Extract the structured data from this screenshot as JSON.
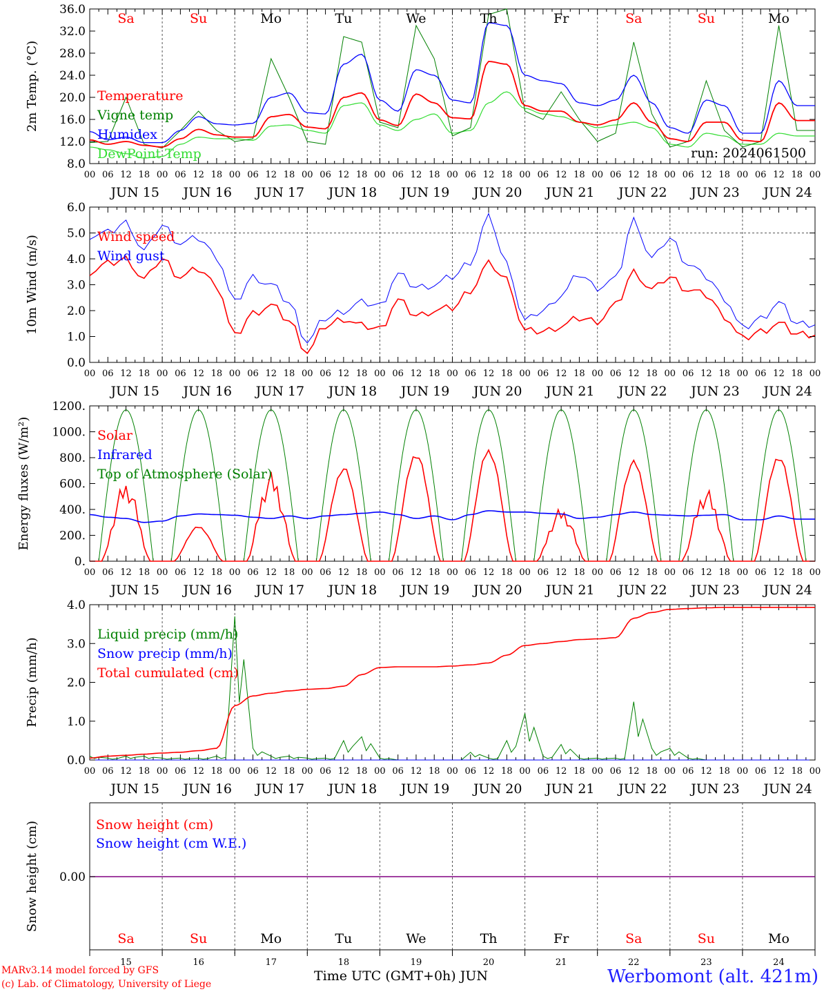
{
  "colors": {
    "red": "#ff0000",
    "green": "#008000",
    "blue": "#0000ff",
    "lightgreen": "#33dd33",
    "purple": "#800080",
    "grid": "#555555"
  },
  "days": {
    "weekday_top": [
      "Sa",
      "Su",
      "Mo",
      "Tu",
      "We",
      "Th",
      "Fr",
      "Sa",
      "Su",
      "Mo"
    ],
    "weekend_flags": [
      true,
      true,
      false,
      false,
      false,
      false,
      false,
      true,
      true,
      false
    ],
    "date_labels": [
      "JUN 15",
      "JUN 16",
      "JUN 17",
      "JUN 18",
      "JUN 19",
      "JUN 20",
      "JUN 21",
      "JUN 22",
      "JUN 23",
      "JUN 24"
    ],
    "day_numbers": [
      "15",
      "16",
      "17",
      "18",
      "19",
      "20",
      "21",
      "22",
      "23",
      "24"
    ],
    "hour_ticks": [
      "00",
      "06",
      "12",
      "18"
    ],
    "hour_end": "00"
  },
  "footer": {
    "credit_line1": "MARv3.14 model forced by GFS",
    "credit_line2": "(c) Lab. of Climatology, University of Liege",
    "time_label": "Time UTC (GMT+0h) JUN",
    "station": "Werbomont (alt. 421m)"
  },
  "chart_data": [
    {
      "type": "line",
      "ylabel": "2m Temp. (°C)",
      "ylim": [
        8,
        36
      ],
      "yticks": [
        "8.0",
        "12.0",
        "16.0",
        "20.0",
        "24.0",
        "28.0",
        "32.0",
        "36.0"
      ],
      "run_label": "run: 2024061500",
      "legend": [
        "Temperature",
        "Vigne temp",
        "Humidex",
        "DewPoint Temp"
      ],
      "x_hours": [
        0,
        6,
        12,
        18,
        24,
        30,
        36,
        42,
        48,
        54,
        60,
        66,
        72,
        78,
        84,
        90,
        96,
        102,
        108,
        114,
        120,
        126,
        132,
        138,
        144,
        150,
        156,
        162,
        168,
        174,
        180,
        186,
        192,
        198,
        204,
        210,
        216,
        222,
        228,
        234
      ],
      "series": [
        {
          "name": "Temperature",
          "values": [
            12.3,
            11.5,
            12.0,
            11.3,
            11.0,
            12.5,
            14.2,
            13.2,
            12.8,
            12.8,
            16.5,
            16.9,
            14.6,
            14.3,
            20.0,
            20.8,
            15.9,
            14.9,
            20.6,
            19.0,
            16.3,
            16.1,
            26.5,
            26.0,
            18.5,
            17.5,
            17.5,
            15.5,
            15.0,
            15.9,
            19.0,
            15.5,
            12.5,
            12.0,
            15.5,
            15.5,
            12.2,
            12.0,
            19.0,
            15.8
          ]
        },
        {
          "name": "Vigne temp",
          "values": [
            11.8,
            12.0,
            20.0,
            11.5,
            10.8,
            14.0,
            17.5,
            14.0,
            12.0,
            12.5,
            27.0,
            20.0,
            12.0,
            11.5,
            31.0,
            30.0,
            15.5,
            14.5,
            33.0,
            27.0,
            13.0,
            14.5,
            35.0,
            36.0,
            17.5,
            16.0,
            21.0,
            16.0,
            12.0,
            13.5,
            30.0,
            17.0,
            11.0,
            12.0,
            23.0,
            14.0,
            11.0,
            12.0,
            33.0,
            14.0
          ]
        },
        {
          "name": "Humidex",
          "values": [
            13.8,
            12.3,
            12.8,
            11.8,
            11.8,
            14.0,
            16.5,
            15.2,
            15.0,
            15.3,
            20.0,
            20.8,
            17.2,
            17.0,
            26.0,
            27.8,
            19.5,
            17.5,
            25.0,
            24.0,
            19.5,
            19.0,
            33.5,
            33.0,
            24.0,
            23.0,
            22.5,
            19.0,
            18.5,
            19.5,
            24.0,
            19.0,
            14.5,
            13.5,
            19.5,
            18.5,
            13.5,
            13.5,
            23.0,
            18.5
          ]
        },
        {
          "name": "DewPoint Temp",
          "values": [
            11.0,
            10.5,
            9.8,
            9.0,
            9.3,
            11.5,
            12.8,
            12.5,
            12.5,
            12.2,
            14.8,
            15.0,
            14.0,
            13.5,
            18.5,
            19.0,
            15.0,
            14.0,
            16.0,
            17.0,
            13.5,
            14.0,
            19.0,
            21.0,
            18.0,
            17.0,
            16.5,
            15.5,
            14.5,
            15.0,
            15.5,
            14.5,
            11.5,
            11.0,
            13.5,
            13.0,
            11.5,
            11.5,
            13.5,
            13.0
          ]
        }
      ]
    },
    {
      "type": "line",
      "ylabel": "10m Wind (m/s)",
      "ylim": [
        0,
        6
      ],
      "yticks": [
        "0.0",
        "1.0",
        "2.0",
        "3.0",
        "4.0",
        "5.0",
        "6.0"
      ],
      "reference_line": 5.0,
      "legend": [
        "Wind speed",
        "Wind gust"
      ],
      "x_hours": [
        0,
        6,
        12,
        18,
        24,
        30,
        36,
        42,
        48,
        54,
        60,
        66,
        72,
        78,
        84,
        90,
        96,
        102,
        108,
        114,
        120,
        126,
        132,
        138,
        144,
        150,
        156,
        162,
        168,
        174,
        180,
        186,
        192,
        198,
        204,
        210,
        216,
        222,
        228,
        234
      ],
      "series": [
        {
          "name": "Wind speed",
          "values": [
            3.5,
            3.8,
            4.0,
            3.2,
            4.0,
            3.3,
            3.6,
            3.0,
            1.0,
            1.9,
            2.2,
            1.6,
            0.4,
            1.4,
            1.7,
            1.4,
            1.3,
            2.4,
            1.8,
            2.0,
            2.1,
            2.8,
            3.8,
            3.2,
            1.2,
            1.2,
            1.4,
            1.7,
            1.6,
            2.2,
            3.5,
            2.8,
            3.3,
            2.8,
            2.6,
            1.8,
            0.9,
            1.2,
            1.5,
            1.1
          ]
        },
        {
          "name": "Wind gust",
          "values": [
            4.9,
            5.0,
            5.4,
            4.3,
            5.3,
            4.6,
            4.8,
            4.1,
            2.3,
            3.3,
            3.0,
            2.3,
            0.8,
            1.7,
            2.0,
            2.3,
            2.2,
            3.4,
            2.9,
            3.0,
            3.3,
            3.9,
            5.6,
            3.8,
            1.6,
            2.0,
            2.6,
            3.4,
            2.9,
            3.2,
            5.5,
            4.0,
            4.8,
            3.8,
            3.3,
            2.5,
            1.3,
            1.7,
            2.3,
            1.5
          ]
        }
      ]
    },
    {
      "type": "line",
      "ylabel": "Energy fluxes (W/m²)",
      "ylim": [
        0,
        1200
      ],
      "yticks": [
        "0.",
        "200.",
        "400.",
        "600.",
        "800.",
        "1000.",
        "1200."
      ],
      "legend": [
        "Solar",
        "Infrared",
        "Top of Atmosphere (Solar)"
      ],
      "top_of_atmosphere_peak": 1170,
      "solar_day_peaks": [
        620,
        270,
        690,
        730,
        840,
        870,
        410,
        780,
        560,
        820
      ],
      "infrared_values": [
        360,
        340,
        330,
        300,
        310,
        350,
        365,
        360,
        355,
        340,
        330,
        350,
        330,
        350,
        360,
        370,
        380,
        360,
        330,
        350,
        320,
        360,
        390,
        380,
        380,
        370,
        365,
        330,
        340,
        360,
        380,
        360,
        355,
        350,
        355,
        360,
        320,
        320,
        350,
        325
      ]
    },
    {
      "type": "line",
      "ylabel": "Precip (mm/h)",
      "ylim": [
        0,
        4
      ],
      "yticks": [
        "0.0",
        "1.0",
        "2.0",
        "3.0",
        "4.0"
      ],
      "legend": [
        "Liquid precip (mm/h)",
        "Snow precip (mm/h)",
        "Total cumulated (cm)"
      ],
      "x_hours": [
        0,
        6,
        12,
        18,
        24,
        30,
        36,
        42,
        48,
        54,
        60,
        66,
        72,
        78,
        84,
        90,
        96,
        102,
        108,
        114,
        120,
        126,
        132,
        138,
        144,
        150,
        156,
        162,
        168,
        174,
        180,
        186,
        192,
        198,
        204,
        210,
        216,
        222,
        228,
        234
      ],
      "series": [
        {
          "name": "Liquid precip (mm/h)",
          "values": [
            0.1,
            0.05,
            0.1,
            0.1,
            0.05,
            0.05,
            0.05,
            0.1,
            3.7,
            0.3,
            0.1,
            0.1,
            0.05,
            0.05,
            0.5,
            0.6,
            0.05,
            0.0,
            0.0,
            0.0,
            0.0,
            0.2,
            0.05,
            0.5,
            1.2,
            0.1,
            0.4,
            0.05,
            0.05,
            0.05,
            1.5,
            0.3,
            0.3,
            0.05,
            0.0,
            0.0,
            0.0,
            0.0,
            0.0,
            0.0
          ]
        },
        {
          "name": "Snow precip (mm/h)",
          "values": [
            0,
            0,
            0,
            0,
            0,
            0,
            0,
            0,
            0,
            0,
            0,
            0,
            0,
            0,
            0,
            0,
            0,
            0,
            0,
            0,
            0,
            0,
            0,
            0,
            0,
            0,
            0,
            0,
            0,
            0,
            0,
            0,
            0,
            0,
            0,
            0,
            0,
            0,
            0,
            0
          ]
        },
        {
          "name": "Total cumulated (cm)",
          "values": [
            0.05,
            0.1,
            0.12,
            0.15,
            0.18,
            0.2,
            0.24,
            0.3,
            1.4,
            1.65,
            1.72,
            1.78,
            1.82,
            1.84,
            1.9,
            2.2,
            2.38,
            2.4,
            2.4,
            2.4,
            2.42,
            2.45,
            2.5,
            2.7,
            2.95,
            3.0,
            3.05,
            3.1,
            3.12,
            3.15,
            3.65,
            3.8,
            3.88,
            3.9,
            3.92,
            3.93,
            3.93,
            3.93,
            3.93,
            3.93
          ]
        }
      ]
    },
    {
      "type": "line",
      "ylabel": "Snow height (cm)",
      "yticks": [
        "0.00"
      ],
      "legend": [
        "Snow height (cm)",
        "Snow height (cm W.E.)"
      ],
      "series": [
        {
          "name": "Snow height (cm)",
          "values": [
            0,
            0
          ]
        },
        {
          "name": "Snow height (cm W.E.)",
          "values": [
            0,
            0
          ]
        }
      ]
    }
  ]
}
